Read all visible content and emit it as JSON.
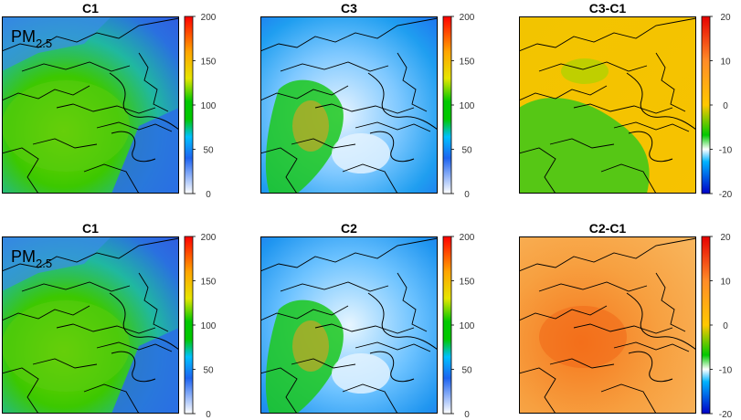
{
  "pollutant_label": "PM",
  "pollutant_subscript": "2.5",
  "rows": [
    {
      "panels": [
        {
          "title": "C1",
          "field": "c1",
          "colorbar": {
            "ticks": [
              "200",
              "150",
              "100",
              "50",
              "0"
            ]
          }
        },
        {
          "title": "C3",
          "field": "c3",
          "colorbar": {
            "ticks": [
              "200",
              "150",
              "100",
              "50",
              "0"
            ]
          }
        },
        {
          "title": "C3-C1",
          "field": "diff31",
          "colorbar": {
            "ticks": [
              "20",
              "10",
              "0",
              "-10",
              "-20"
            ]
          }
        }
      ]
    },
    {
      "panels": [
        {
          "title": "C1",
          "field": "c1",
          "colorbar": {
            "ticks": [
              "200",
              "150",
              "100",
              "50",
              "0"
            ]
          }
        },
        {
          "title": "C2",
          "field": "c2",
          "colorbar": {
            "ticks": [
              "200",
              "150",
              "100",
              "50",
              "0"
            ]
          }
        },
        {
          "title": "C2-C1",
          "field": "diff21",
          "colorbar": {
            "ticks": [
              "20",
              "10",
              "0",
              "-10",
              "-20"
            ]
          }
        }
      ]
    }
  ],
  "colors": {
    "conc_scale": [
      "#ffffff",
      "#1e64f0",
      "#00c800",
      "#e6e600",
      "#ffa500",
      "#ff0000"
    ],
    "diff_scale": [
      "#0000c8",
      "#00b4ff",
      "#ffffff",
      "#00c800",
      "#ffc800",
      "#ff8c28",
      "#e60000"
    ]
  }
}
